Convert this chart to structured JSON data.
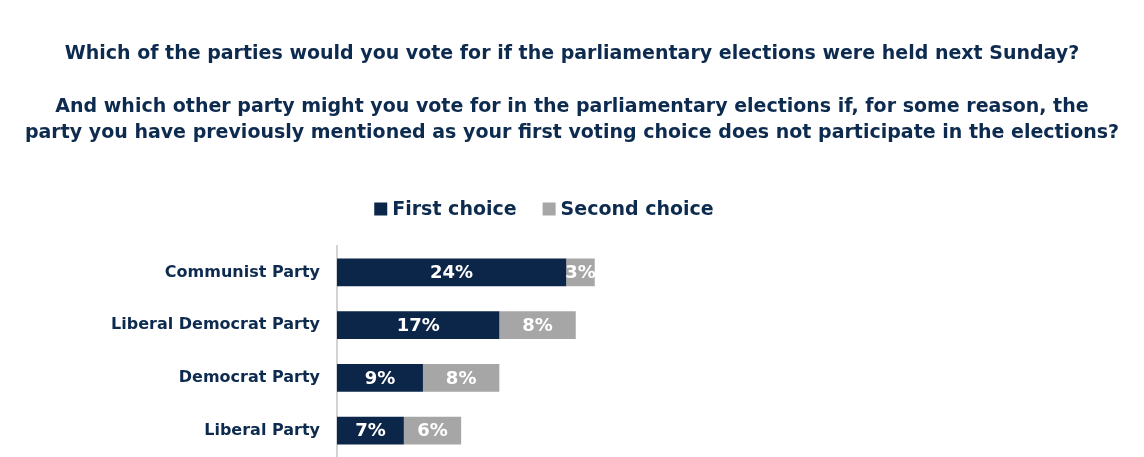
{
  "chart_data": {
    "type": "bar",
    "orientation": "horizontal",
    "stacked": true,
    "title": "Which of the parties would you vote for if the parliamentary elections were held next Sunday?",
    "subtitle": "And which other party might you vote for in the parliamentary elections if, for some reason, the party you have previously mentioned as your first voting choice does not participate in the elections?",
    "categories": [
      "Communist Party",
      "Liberal Democrat Party",
      "Democrat Party",
      "Liberal Party"
    ],
    "series": [
      {
        "name": "First choice",
        "color": "#0b2648",
        "values": [
          24,
          17,
          9,
          7
        ],
        "value_labels": [
          "24%",
          "17%",
          "9%",
          "7%"
        ]
      },
      {
        "name": "Second choice",
        "color": "#a6a6a6",
        "values": [
          3,
          8,
          8,
          6
        ],
        "value_labels": [
          "3%",
          "8%",
          "8%",
          "6%"
        ]
      }
    ],
    "legend": "top"
  }
}
